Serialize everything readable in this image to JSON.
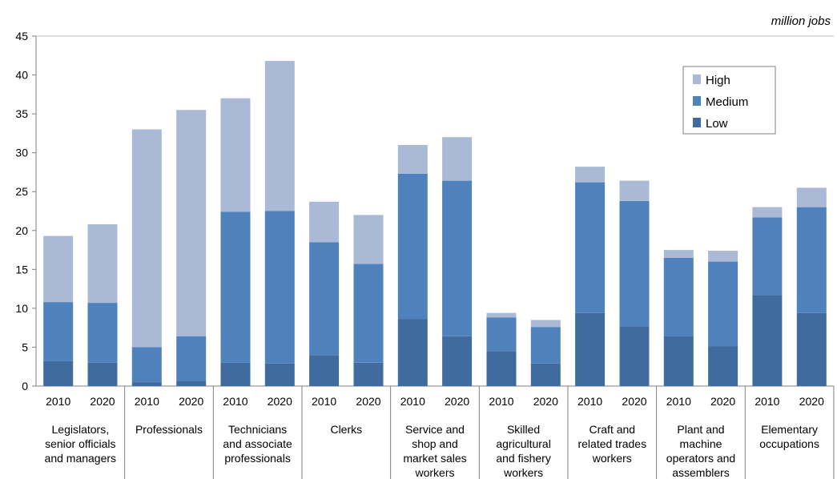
{
  "chart_data": {
    "type": "bar",
    "stacked": true,
    "unit_label": "million jobs",
    "ylim": [
      0,
      45
    ],
    "yticks": [
      0,
      5,
      10,
      15,
      20,
      25,
      30,
      35,
      40,
      45
    ],
    "grid": false,
    "legend_position": "top-right",
    "series": [
      {
        "name": "Low",
        "color": "#3f6b9f",
        "values": [
          3.2,
          3.0,
          0.5,
          0.7,
          3.0,
          2.9,
          4.0,
          3.0,
          8.6,
          6.4,
          4.5,
          2.9,
          9.4,
          7.7,
          6.4,
          5.1,
          11.7,
          9.4
        ]
      },
      {
        "name": "Medium",
        "color": "#4f81bd",
        "values": [
          7.6,
          7.7,
          4.5,
          5.7,
          19.4,
          19.6,
          14.5,
          12.7,
          18.7,
          20.0,
          4.3,
          4.7,
          16.8,
          16.1,
          10.1,
          10.9,
          10.0,
          13.6
        ]
      },
      {
        "name": "High",
        "color": "#a9b9d6",
        "values": [
          8.5,
          10.1,
          28.0,
          29.1,
          14.6,
          19.3,
          5.2,
          6.3,
          3.7,
          5.6,
          0.6,
          0.9,
          2.0,
          2.6,
          1.0,
          1.4,
          1.3,
          2.5
        ]
      }
    ],
    "groups": [
      {
        "label": [
          "Legislators,",
          "senior officials",
          "and managers"
        ],
        "years": [
          "2010",
          "2020"
        ]
      },
      {
        "label": [
          "Professionals"
        ],
        "years": [
          "2010",
          "2020"
        ]
      },
      {
        "label": [
          "Technicians",
          "and associate",
          "professionals"
        ],
        "years": [
          "2010",
          "2020"
        ]
      },
      {
        "label": [
          "Clerks"
        ],
        "years": [
          "2010",
          "2020"
        ]
      },
      {
        "label": [
          "Service and",
          "shop and",
          "market sales",
          "workers"
        ],
        "years": [
          "2010",
          "2020"
        ]
      },
      {
        "label": [
          "Skilled",
          "agricultural",
          "and fishery",
          "workers"
        ],
        "years": [
          "2010",
          "2020"
        ]
      },
      {
        "label": [
          "Craft and",
          "related trades",
          "workers"
        ],
        "years": [
          "2010",
          "2020"
        ]
      },
      {
        "label": [
          "Plant and",
          "machine",
          "operators and",
          "assemblers"
        ],
        "years": [
          "2010",
          "2020"
        ]
      },
      {
        "label": [
          "Elementary",
          "occupations"
        ],
        "years": [
          "2010",
          "2020"
        ]
      }
    ]
  }
}
